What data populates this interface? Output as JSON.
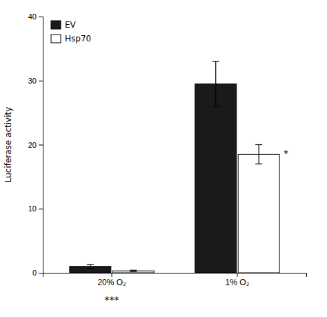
{
  "chart_data": {
    "type": "bar",
    "categories": [
      "20% O₂",
      "1% O₂"
    ],
    "series": [
      {
        "name": "EV",
        "color": "#1a1a1a",
        "values": [
          1.0,
          29.5
        ],
        "errors": [
          0.3,
          3.5
        ]
      },
      {
        "name": "Hsp70",
        "color": "#ffffff",
        "values": [
          0.3,
          18.5
        ],
        "errors": [
          0.1,
          1.5
        ]
      }
    ],
    "ylabel": "Luciferase activity",
    "ylim": [
      0,
      40
    ],
    "yticks": [
      0,
      10,
      20,
      30,
      40
    ],
    "legend": "upper left",
    "annotations": [
      {
        "text": "***",
        "category": "20% O₂"
      },
      {
        "text": "*",
        "category": "1% O₂",
        "series": "Hsp70"
      }
    ]
  }
}
